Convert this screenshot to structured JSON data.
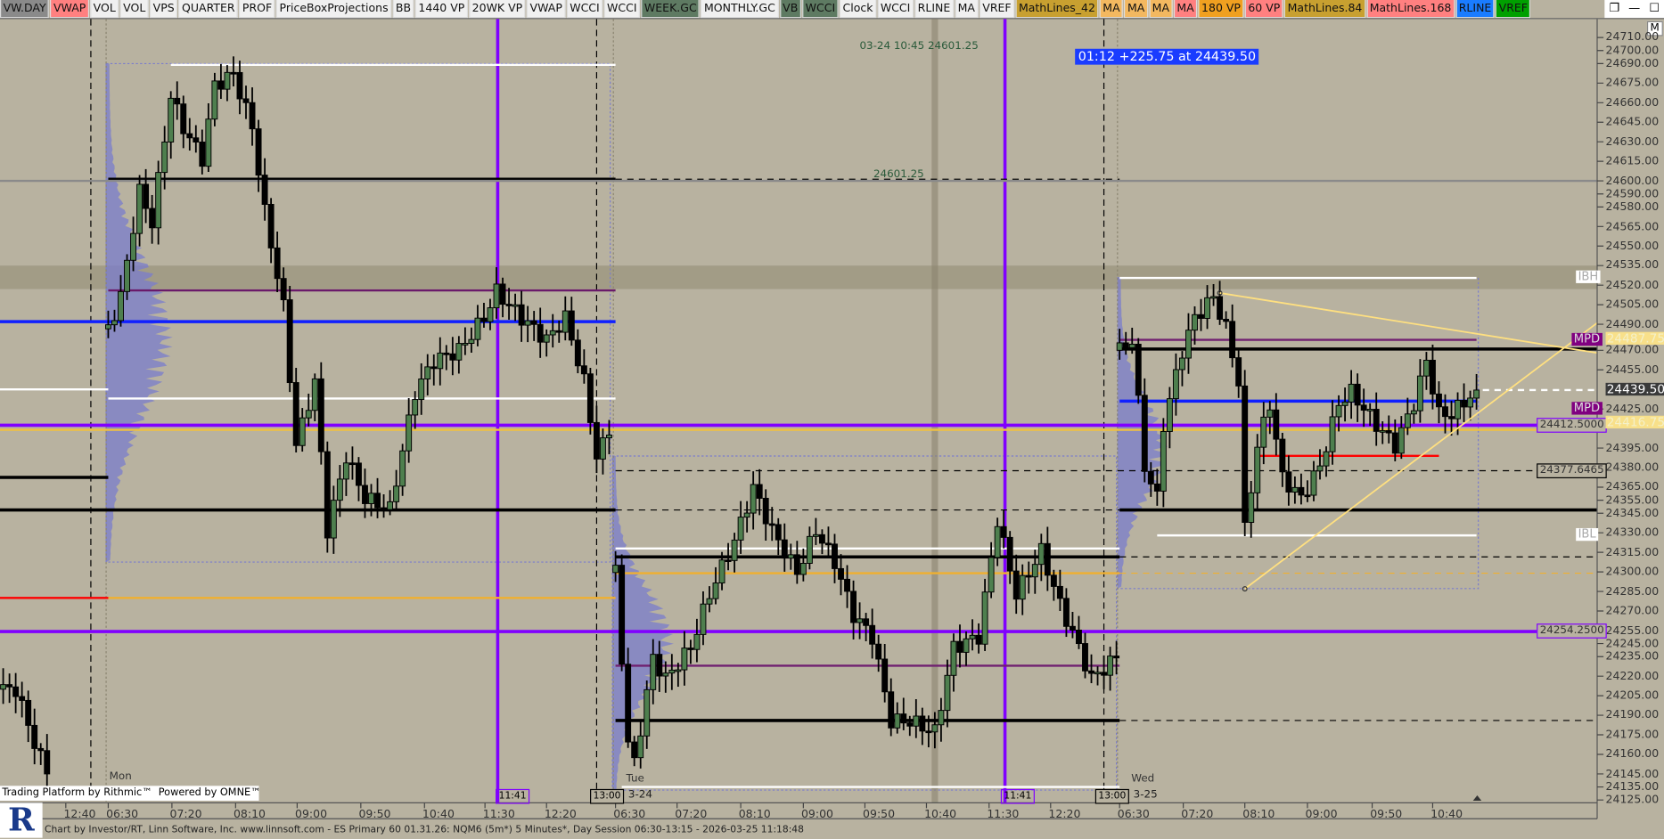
{
  "toolbar": {
    "items": [
      {
        "label": "VW.DAY",
        "color": "#8a8a8a"
      },
      {
        "label": "VWAP",
        "color": "#ff8080"
      },
      {
        "label": "VOL",
        "color": "#f0f0f0"
      },
      {
        "label": "VOL",
        "color": "#f0f0f0"
      },
      {
        "label": "VPS",
        "color": "#f0f0f0"
      },
      {
        "label": "QUARTER",
        "color": "#f0f0f0"
      },
      {
        "label": "PROF",
        "color": "#f0f0f0"
      },
      {
        "label": "PriceBoxProjections",
        "color": "#f0f0f0"
      },
      {
        "label": "BB",
        "color": "#f0f0f0"
      },
      {
        "label": "1440 VP",
        "color": "#f0f0f0"
      },
      {
        "label": "20WK VP",
        "color": "#f0f0f0"
      },
      {
        "label": "VWAP",
        "color": "#f0f0f0"
      },
      {
        "label": "WCCI",
        "color": "#f0f0f0"
      },
      {
        "label": "WCCI",
        "color": "#f0f0f0"
      },
      {
        "label": "WEEK.GC",
        "color": "#5e7a62"
      },
      {
        "label": "MONTHLY.GC",
        "color": "#f0f0f0"
      },
      {
        "label": "VB",
        "color": "#5e7a62"
      },
      {
        "label": "WCCI",
        "color": "#5e7a62"
      },
      {
        "label": "Clock",
        "color": "#f0f0f0"
      },
      {
        "label": "WCCI",
        "color": "#f0f0f0"
      },
      {
        "label": "RLINE",
        "color": "#f0f0f0"
      },
      {
        "label": "MA",
        "color": "#f0f0f0"
      },
      {
        "label": "VREF",
        "color": "#f0f0f0"
      },
      {
        "label": "MathLines_42",
        "color": "#c8a030"
      },
      {
        "label": "MA",
        "color": "#f3b860"
      },
      {
        "label": "MA",
        "color": "#f3b860"
      },
      {
        "label": "MA",
        "color": "#f3b860"
      },
      {
        "label": "MA",
        "color": "#ff8080"
      },
      {
        "label": "180 VP",
        "color": "#f0a020"
      },
      {
        "label": "60 VP",
        "color": "#ff8080"
      },
      {
        "label": "MathLines.84",
        "color": "#c8a030"
      },
      {
        "label": "MathLines.168",
        "color": "#ff8080"
      },
      {
        "label": "RLINE",
        "color": "#1a7cff"
      },
      {
        "label": "VREF",
        "color": "#00a000"
      }
    ]
  },
  "window_controls": {
    "restore": "❐",
    "minimize": "—",
    "maximize": "☐",
    "m_button": "M"
  },
  "overlays": {
    "crosshair_info": "03-24 10:45 24601.25",
    "level_text": "24601.25",
    "change_box": "01:12  +225.75 at 24439.50",
    "change_box_color": "#1a3cff"
  },
  "session_labels": {
    "mon": "Mon",
    "tue": "Tue",
    "tue_date": "3-24",
    "wed": "Wed",
    "wed_date": "3-25"
  },
  "time_boxes": [
    "11:41",
    "13:00",
    "11:41",
    "13:00"
  ],
  "price_axis": {
    "ticks": [
      "24710.00",
      "24700.00",
      "24690.00",
      "24675.00",
      "24660.00",
      "24645.00",
      "24630.00",
      "24615.00",
      "24600.00",
      "24590.00",
      "24580.00",
      "24565.00",
      "24550.00",
      "24535.00",
      "24520.00",
      "24505.00",
      "24490.00",
      "24470.00",
      "24455.00",
      "24425.00",
      "24395.00",
      "24380.00",
      "24365.00",
      "24355.00",
      "24345.00",
      "24330.00",
      "24315.00",
      "24300.00",
      "24285.00",
      "24270.00",
      "24255.00",
      "24245.00",
      "24235.00",
      "24220.00",
      "24205.00",
      "24190.00",
      "24175.00",
      "24160.00",
      "24145.00",
      "24135.00",
      "24125.00"
    ],
    "marker_labels": [
      {
        "text": "24412.5000",
        "price": 24412.5,
        "border": "#8000ff"
      },
      {
        "text": "24377.6465",
        "price": 24377.6465,
        "border": "#000000"
      },
      {
        "text": "24254.2500",
        "price": 24254.25,
        "border": "#8000ff"
      }
    ],
    "tags": [
      {
        "text": "IBH",
        "price": 24525.5,
        "kind": "ib"
      },
      {
        "text": "IBL",
        "price": 24328,
        "kind": "ib"
      },
      {
        "text": "MPD",
        "price": 24478,
        "kind": "mpd"
      },
      {
        "text": "MPD",
        "price": 24425,
        "kind": "mpd"
      }
    ],
    "axis_values": [
      {
        "text": "24487.75",
        "price": 24487.75,
        "bg": "#f8e08a",
        "fg": "#f4f0c8"
      },
      {
        "text": "24439.50",
        "price": 24439.5,
        "bg": "#3a3a3a",
        "fg": "#ffffff"
      },
      {
        "text": "24416.75",
        "price": 24416.75,
        "bg": "#f8e08a",
        "fg": "#f4f0c8"
      }
    ]
  },
  "time_axis": {
    "ticks": [
      "12:40",
      "06:30",
      "07:20",
      "08:10",
      "09:00",
      "09:50",
      "10:40",
      "11:30",
      "12:20",
      "06:30",
      "07:20",
      "08:10",
      "09:00",
      "09:50",
      "10:40",
      "11:30",
      "12:20",
      "06:30",
      "07:20",
      "08:10",
      "09:00",
      "09:50",
      "10:40"
    ]
  },
  "branding": {
    "rithmic": "Trading Platform by Rithmic™",
    "omne": "Powered by OMNE™",
    "logo": "R"
  },
  "footer": "Chart by Investor/RT, Linn Software, Inc. www.linnsoft.com - ES Primary 60  01.31.26: NQM6 (5m*) 5 Minutes*, Day Session 06:30-13:15 - 2026-03-25 11:18:48",
  "chart_data": {
    "type": "candlestick",
    "instrument": "NQM6",
    "interval": "5 Minutes",
    "last_price": 24439.5,
    "colors": {
      "up": "#4e7f4e",
      "down": "#000000",
      "background": "#b8b2a0"
    },
    "sessions": [
      {
        "key": "prev",
        "waypoints": [
          [
            "11:50",
            24210
          ],
          [
            "12:00",
            24210
          ],
          [
            "12:15",
            24169
          ],
          [
            "12:25",
            24145
          ]
        ]
      },
      {
        "key": "Mon",
        "waypoints": [
          [
            "06:30",
            24486.5
          ],
          [
            "06:40",
            24511
          ],
          [
            "06:55",
            24592
          ],
          [
            "07:05",
            24568
          ],
          [
            "07:20",
            24665.5
          ],
          [
            "07:30",
            24641
          ],
          [
            "07:45",
            24617
          ],
          [
            "07:55",
            24673.5
          ],
          [
            "08:10",
            24682
          ],
          [
            "08:25",
            24641
          ],
          [
            "08:35",
            24576
          ],
          [
            "08:50",
            24503
          ],
          [
            "09:00",
            24397
          ],
          [
            "09:15",
            24446
          ],
          [
            "09:25",
            24332
          ],
          [
            "09:40",
            24389
          ],
          [
            "09:55",
            24356.5
          ],
          [
            "10:15",
            24348
          ],
          [
            "10:35",
            24438
          ],
          [
            "10:50",
            24462
          ],
          [
            "11:10",
            24470
          ],
          [
            "11:30",
            24495
          ],
          [
            "11:40",
            24515
          ],
          [
            "12:00",
            24495
          ],
          [
            "12:20",
            24478
          ],
          [
            "12:35",
            24495
          ],
          [
            "12:50",
            24446
          ],
          [
            "13:00",
            24389
          ],
          [
            "13:10",
            24405
          ]
        ]
      },
      {
        "key": "Tue",
        "waypoints": [
          [
            "06:30",
            24299.5
          ],
          [
            "06:40",
            24169
          ],
          [
            "06:45",
            24153
          ],
          [
            "07:00",
            24234
          ],
          [
            "07:10",
            24218
          ],
          [
            "07:30",
            24242
          ],
          [
            "07:45",
            24283
          ],
          [
            "08:05",
            24324
          ],
          [
            "08:20",
            24364.5
          ],
          [
            "08:35",
            24332
          ],
          [
            "08:55",
            24299.5
          ],
          [
            "09:10",
            24332
          ],
          [
            "09:25",
            24307.5
          ],
          [
            "09:40",
            24267
          ],
          [
            "09:55",
            24250.5
          ],
          [
            "10:10",
            24185.5
          ],
          [
            "10:25",
            24185.5
          ],
          [
            "10:45",
            24177
          ],
          [
            "11:00",
            24242
          ],
          [
            "11:20",
            24250.5
          ],
          [
            "11:35",
            24340
          ],
          [
            "11:50",
            24283
          ],
          [
            "12:10",
            24316
          ],
          [
            "12:25",
            24275
          ],
          [
            "12:40",
            24242
          ],
          [
            "12:50",
            24218
          ],
          [
            "13:10",
            24234
          ]
        ]
      },
      {
        "key": "Wed",
        "waypoints": [
          [
            "06:30",
            24470
          ],
          [
            "06:40",
            24478
          ],
          [
            "06:50",
            24381
          ],
          [
            "07:00",
            24356.5
          ],
          [
            "07:05",
            24413
          ],
          [
            "07:20",
            24470
          ],
          [
            "07:30",
            24495
          ],
          [
            "07:45",
            24511
          ],
          [
            "07:55",
            24486.5
          ],
          [
            "08:05",
            24446
          ],
          [
            "08:10",
            24332
          ],
          [
            "08:20",
            24397
          ],
          [
            "08:30",
            24429.5
          ],
          [
            "08:40",
            24372.5
          ],
          [
            "08:55",
            24356.5
          ],
          [
            "09:10",
            24381
          ],
          [
            "09:25",
            24429.5
          ],
          [
            "09:35",
            24438
          ],
          [
            "09:55",
            24413
          ],
          [
            "10:10",
            24397
          ],
          [
            "10:25",
            24429.5
          ],
          [
            "10:35",
            24462
          ],
          [
            "10:45",
            24421
          ],
          [
            "10:55",
            24421
          ],
          [
            "11:15",
            24439.5
          ]
        ]
      }
    ],
    "band": {
      "high": 24535,
      "low": 24517,
      "color": "#a29c86"
    },
    "levels": [
      {
        "price": 24689,
        "color": "#ffffff",
        "w": 2,
        "from": "Mon 07:20",
        "to": "Tue 06:30"
      },
      {
        "price": 24601.25,
        "color": "#000000",
        "w": 3,
        "from": "Mon 06:30",
        "to": "Tue 06:30"
      },
      {
        "price": 24601.25,
        "color": "#000000",
        "w": 1,
        "dash": true,
        "from": "Tue 06:30",
        "to": "Wed 06:30"
      },
      {
        "price": 24600,
        "color": "#8a8a8a",
        "w": 2,
        "from": "start",
        "to": "end"
      },
      {
        "price": 24516,
        "color": "#6a1a6a",
        "w": 2,
        "from": "Mon 06:30",
        "to": "Tue 06:30"
      },
      {
        "price": 24492,
        "color": "#1020ff",
        "w": 3,
        "from": "start",
        "to": "Tue 06:30"
      },
      {
        "price": 24431,
        "color": "#1020ff",
        "w": 3,
        "from": "Wed 06:30",
        "to": "Wed 11:15"
      },
      {
        "price": 24440,
        "color": "#ffffff",
        "w": 2,
        "from": "start",
        "to": "Mon 06:30"
      },
      {
        "price": 24433,
        "color": "#ffffff",
        "w": 2,
        "from": "Mon 06:30",
        "to": "Tue 06:30"
      },
      {
        "price": 24412.5,
        "color": "#8000ff",
        "w": 3,
        "from": "start",
        "to": "end"
      },
      {
        "price": 24409,
        "color": "#f0c040",
        "w": 2,
        "from": "start",
        "to": "end"
      },
      {
        "price": 24372.5,
        "color": "#000000",
        "w": 3,
        "from": "start",
        "to": "Mon 06:30"
      },
      {
        "price": 24347.5,
        "color": "#000000",
        "w": 3,
        "from": "start",
        "to": "Tue 06:30"
      },
      {
        "price": 24347.5,
        "color": "#000000",
        "w": 1,
        "dash": true,
        "from": "Tue 06:30",
        "to": "Wed 06:30"
      },
      {
        "price": 24347.5,
        "color": "#000000",
        "w": 3,
        "from": "Wed 06:30",
        "to": "end"
      },
      {
        "price": 24377.6465,
        "color": "#000000",
        "w": 1,
        "dash": true,
        "from": "Tue 06:30",
        "to": "end"
      },
      {
        "price": 24318,
        "color": "#ffffff",
        "w": 2,
        "from": "Tue 06:30",
        "to": "Wed 06:30"
      },
      {
        "price": 24311.5,
        "color": "#000000",
        "w": 3,
        "from": "Tue 06:30",
        "to": "Wed 06:30"
      },
      {
        "price": 24311.5,
        "color": "#000000",
        "w": 1,
        "dash": true,
        "from": "Wed 06:30",
        "to": "end"
      },
      {
        "price": 24299,
        "color": "#f0b030",
        "w": 2,
        "from": "Tue 06:30",
        "to": "Wed 06:30"
      },
      {
        "price": 24299,
        "color": "#f0b030",
        "w": 1,
        "dash": true,
        "from": "Wed 06:30",
        "to": "end"
      },
      {
        "price": 24280,
        "color": "#f0b030",
        "w": 2,
        "from": "Mon 06:30",
        "to": "Tue 06:30"
      },
      {
        "price": 24280,
        "color": "#ff0000",
        "w": 2,
        "from": "start",
        "to": "Mon 06:30"
      },
      {
        "price": 24254.25,
        "color": "#8000ff",
        "w": 3,
        "from": "start",
        "to": "end"
      },
      {
        "price": 24228,
        "color": "#702070",
        "w": 2,
        "from": "Tue 06:30",
        "to": "Wed 06:30"
      },
      {
        "price": 24186,
        "color": "#000000",
        "w": 3,
        "from": "Tue 06:30",
        "to": "Wed 06:30"
      },
      {
        "price": 24186,
        "color": "#000000",
        "w": 1,
        "dash": true,
        "from": "Wed 06:30",
        "to": "end"
      },
      {
        "price": 24135,
        "color": "#ffffff",
        "w": 2,
        "from": "Tue 06:35",
        "to": "Wed 06:30"
      },
      {
        "price": 24525.5,
        "color": "#ffffff",
        "w": 2,
        "from": "Wed 06:30",
        "to": "Wed 11:15"
      },
      {
        "price": 24478,
        "color": "#702070",
        "w": 2,
        "from": "Wed 06:30",
        "to": "Wed 11:15"
      },
      {
        "price": 24471,
        "color": "#000000",
        "w": 3,
        "from": "Wed 06:30",
        "to": "end"
      },
      {
        "price": 24328,
        "color": "#ffffff",
        "w": 2,
        "from": "Wed 07:00",
        "to": "Wed 11:15"
      },
      {
        "price": 24389,
        "color": "#ff0000",
        "w": 2,
        "from": "Wed 08:20",
        "to": "Wed 10:45"
      },
      {
        "price": 24439.5,
        "color": "#ffffff",
        "w": 2,
        "dash": true,
        "from": "Wed 11:20",
        "to": "end"
      }
    ],
    "verticals": [
      {
        "at": "Mon 11:41",
        "color": "#8000ff",
        "w": 3
      },
      {
        "at": "Tue 11:41",
        "color": "#8000ff",
        "w": 3
      },
      {
        "at": "prev 13:00",
        "color": "#000000",
        "w": 1,
        "dash": true
      },
      {
        "at": "Mon 13:00",
        "color": "#000000",
        "w": 1,
        "dash": true
      },
      {
        "at": "Tue 13:00",
        "color": "#000000",
        "w": 1,
        "dash": true
      },
      {
        "at": "Tue 10:45",
        "color": "#8a8470",
        "w": 6
      }
    ],
    "trendlines": [
      {
        "from": [
          "Wed 07:50",
          24514
        ],
        "to": [
          "end",
          24468
        ],
        "color": "#ffe080"
      },
      {
        "from": [
          "Wed 08:10",
          24287
        ],
        "to": [
          "end",
          24491
        ],
        "color": "#ffe080"
      }
    ]
  }
}
